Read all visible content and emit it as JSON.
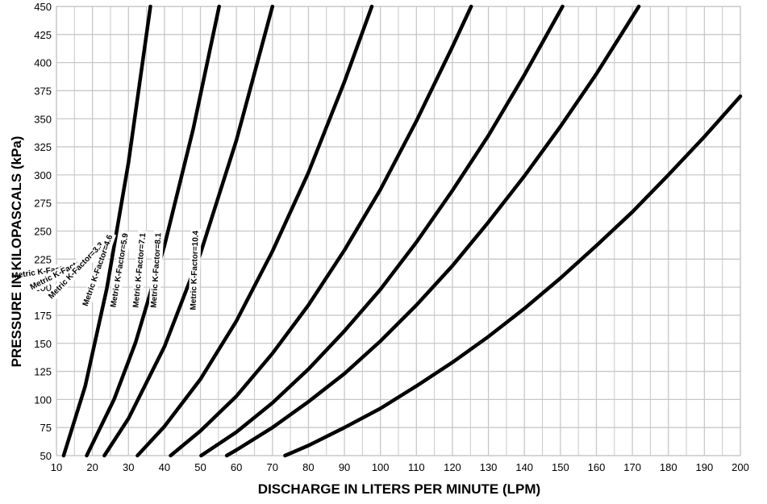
{
  "chart_data": {
    "type": "line",
    "xlabel": "DISCHARGE IN LITERS PER MINUTE (LPM)",
    "ylabel": "PRESSURE IN KILOPASCALS (kPa)",
    "xlim": [
      10,
      200
    ],
    "ylim": [
      50,
      450
    ],
    "x_ticks": [
      10,
      20,
      30,
      40,
      50,
      60,
      70,
      80,
      90,
      100,
      110,
      120,
      130,
      140,
      150,
      160,
      170,
      180,
      190,
      200
    ],
    "y_ticks": [
      50,
      75,
      100,
      125,
      150,
      175,
      200,
      225,
      250,
      275,
      300,
      325,
      350,
      375,
      400,
      425,
      450
    ],
    "grid": true,
    "series": [
      {
        "name": "Metric K-Factor=1.7",
        "k": 1.7,
        "points": [
          [
            12.0,
            50
          ],
          [
            18.0,
            112
          ],
          [
            24.0,
            199
          ],
          [
            30.0,
            311
          ],
          [
            36.1,
            450
          ]
        ]
      },
      {
        "name": "Metric K-Factor=2.6",
        "k": 2.6,
        "points": [
          [
            18.4,
            50
          ],
          [
            26.0,
            100
          ],
          [
            32.0,
            151
          ],
          [
            40.0,
            237
          ],
          [
            48.0,
            341
          ],
          [
            55.2,
            450
          ]
        ]
      },
      {
        "name": "Metric K-Factor=3.3",
        "k": 3.3,
        "points": [
          [
            23.3,
            50
          ],
          [
            30.0,
            83
          ],
          [
            40.0,
            147
          ],
          [
            50.0,
            230
          ],
          [
            60.0,
            331
          ],
          [
            70.0,
            450
          ]
        ]
      },
      {
        "name": "Metric K-Factor=4.6",
        "k": 4.6,
        "points": [
          [
            32.5,
            50
          ],
          [
            40.0,
            76
          ],
          [
            50.0,
            118
          ],
          [
            60.0,
            170
          ],
          [
            70.0,
            232
          ],
          [
            80.0,
            302
          ],
          [
            90.0,
            383
          ],
          [
            97.6,
            450
          ]
        ]
      },
      {
        "name": "Metric K-Factor=5.9",
        "k": 5.9,
        "points": [
          [
            41.7,
            50
          ],
          [
            50.0,
            72
          ],
          [
            60.0,
            103
          ],
          [
            70.0,
            141
          ],
          [
            80.0,
            184
          ],
          [
            90.0,
            233
          ],
          [
            100.0,
            287
          ],
          [
            110.0,
            348
          ],
          [
            120.0,
            414
          ],
          [
            125.2,
            450
          ]
        ]
      },
      {
        "name": "Metric K-Factor=7.1",
        "k": 7.1,
        "points": [
          [
            50.2,
            50
          ],
          [
            60.0,
            71
          ],
          [
            70.0,
            97
          ],
          [
            80.0,
            127
          ],
          [
            90.0,
            161
          ],
          [
            100.0,
            198
          ],
          [
            110.0,
            240
          ],
          [
            120.0,
            286
          ],
          [
            130.0,
            335
          ],
          [
            140.0,
            389
          ],
          [
            150.6,
            450
          ]
        ]
      },
      {
        "name": "Metric K-Factor=8.1",
        "k": 8.1,
        "points": [
          [
            57.3,
            50
          ],
          [
            60.0,
            55
          ],
          [
            70.0,
            75
          ],
          [
            80.0,
            98
          ],
          [
            90.0,
            123
          ],
          [
            100.0,
            152
          ],
          [
            110.0,
            184
          ],
          [
            120.0,
            219
          ],
          [
            130.0,
            258
          ],
          [
            140.0,
            299
          ],
          [
            150.0,
            343
          ],
          [
            160.0,
            390
          ],
          [
            171.8,
            450
          ]
        ]
      },
      {
        "name": "Metric K-Factor=10.4",
        "k": 10.4,
        "points": [
          [
            73.5,
            50
          ],
          [
            80.0,
            59
          ],
          [
            90.0,
            75
          ],
          [
            100.0,
            92
          ],
          [
            110.0,
            112
          ],
          [
            120.0,
            133
          ],
          [
            130.0,
            156
          ],
          [
            140.0,
            181
          ],
          [
            150.0,
            208
          ],
          [
            160.0,
            237
          ],
          [
            170.0,
            267
          ],
          [
            180.0,
            300
          ],
          [
            190.0,
            334
          ],
          [
            200.0,
            370
          ]
        ]
      }
    ]
  }
}
